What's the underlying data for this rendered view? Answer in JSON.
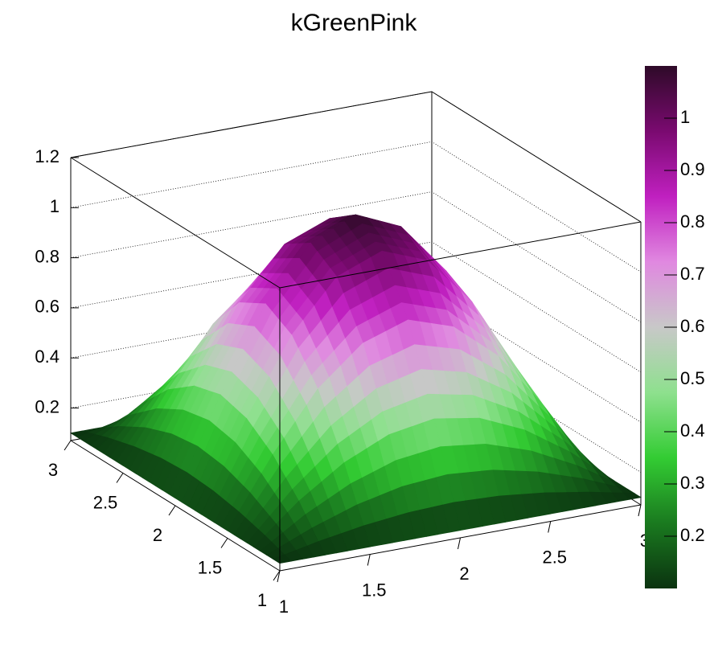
{
  "chart_data": {
    "type": "surface",
    "title": "kGreenPink",
    "x": [
      1,
      1.25,
      1.5,
      1.75,
      2,
      2.25,
      2.5,
      2.75,
      3
    ],
    "y": [
      1,
      1.25,
      1.5,
      1.75,
      2,
      2.25,
      2.5,
      2.75,
      3
    ],
    "z": [
      [
        0.1,
        0.1,
        0.1,
        0.1,
        0.1,
        0.1,
        0.1,
        0.1,
        0.1
      ],
      [
        0.1,
        0.25,
        0.37,
        0.45,
        0.48,
        0.45,
        0.37,
        0.25,
        0.1
      ],
      [
        0.1,
        0.37,
        0.6,
        0.75,
        0.81,
        0.75,
        0.6,
        0.37,
        0.1
      ],
      [
        0.1,
        0.45,
        0.75,
        0.95,
        1.02,
        0.95,
        0.75,
        0.45,
        0.1
      ],
      [
        0.1,
        0.48,
        0.81,
        1.02,
        1.1,
        1.02,
        0.81,
        0.48,
        0.1
      ],
      [
        0.1,
        0.45,
        0.75,
        0.95,
        1.02,
        0.95,
        0.75,
        0.45,
        0.1
      ],
      [
        0.1,
        0.37,
        0.6,
        0.75,
        0.81,
        0.75,
        0.6,
        0.37,
        0.1
      ],
      [
        0.1,
        0.25,
        0.37,
        0.45,
        0.48,
        0.45,
        0.37,
        0.25,
        0.1
      ],
      [
        0.1,
        0.1,
        0.1,
        0.1,
        0.1,
        0.1,
        0.1,
        0.1,
        0.1
      ]
    ],
    "xlim": [
      1,
      3
    ],
    "ylim": [
      1,
      3
    ],
    "zlim": [
      0.07,
      1.2
    ],
    "xticks": [
      1,
      1.5,
      2,
      2.5,
      3
    ],
    "yticks": [
      1,
      1.5,
      2,
      2.5,
      3
    ],
    "zticks": [
      0.2,
      0.4,
      0.6,
      0.8,
      1,
      1.2
    ],
    "grid": true,
    "palette": [
      "#0b3310",
      "#1a7a1f",
      "#33cc33",
      "#8ee08e",
      "#c8c8c8",
      "#e088e0",
      "#c020c0",
      "#7a0a70",
      "#2e0a28"
    ],
    "colorbar": {
      "lim": [
        0.1,
        1.1
      ],
      "ticks": [
        0.2,
        0.3,
        0.4,
        0.5,
        0.6,
        0.7,
        0.8,
        0.9,
        1
      ]
    }
  }
}
